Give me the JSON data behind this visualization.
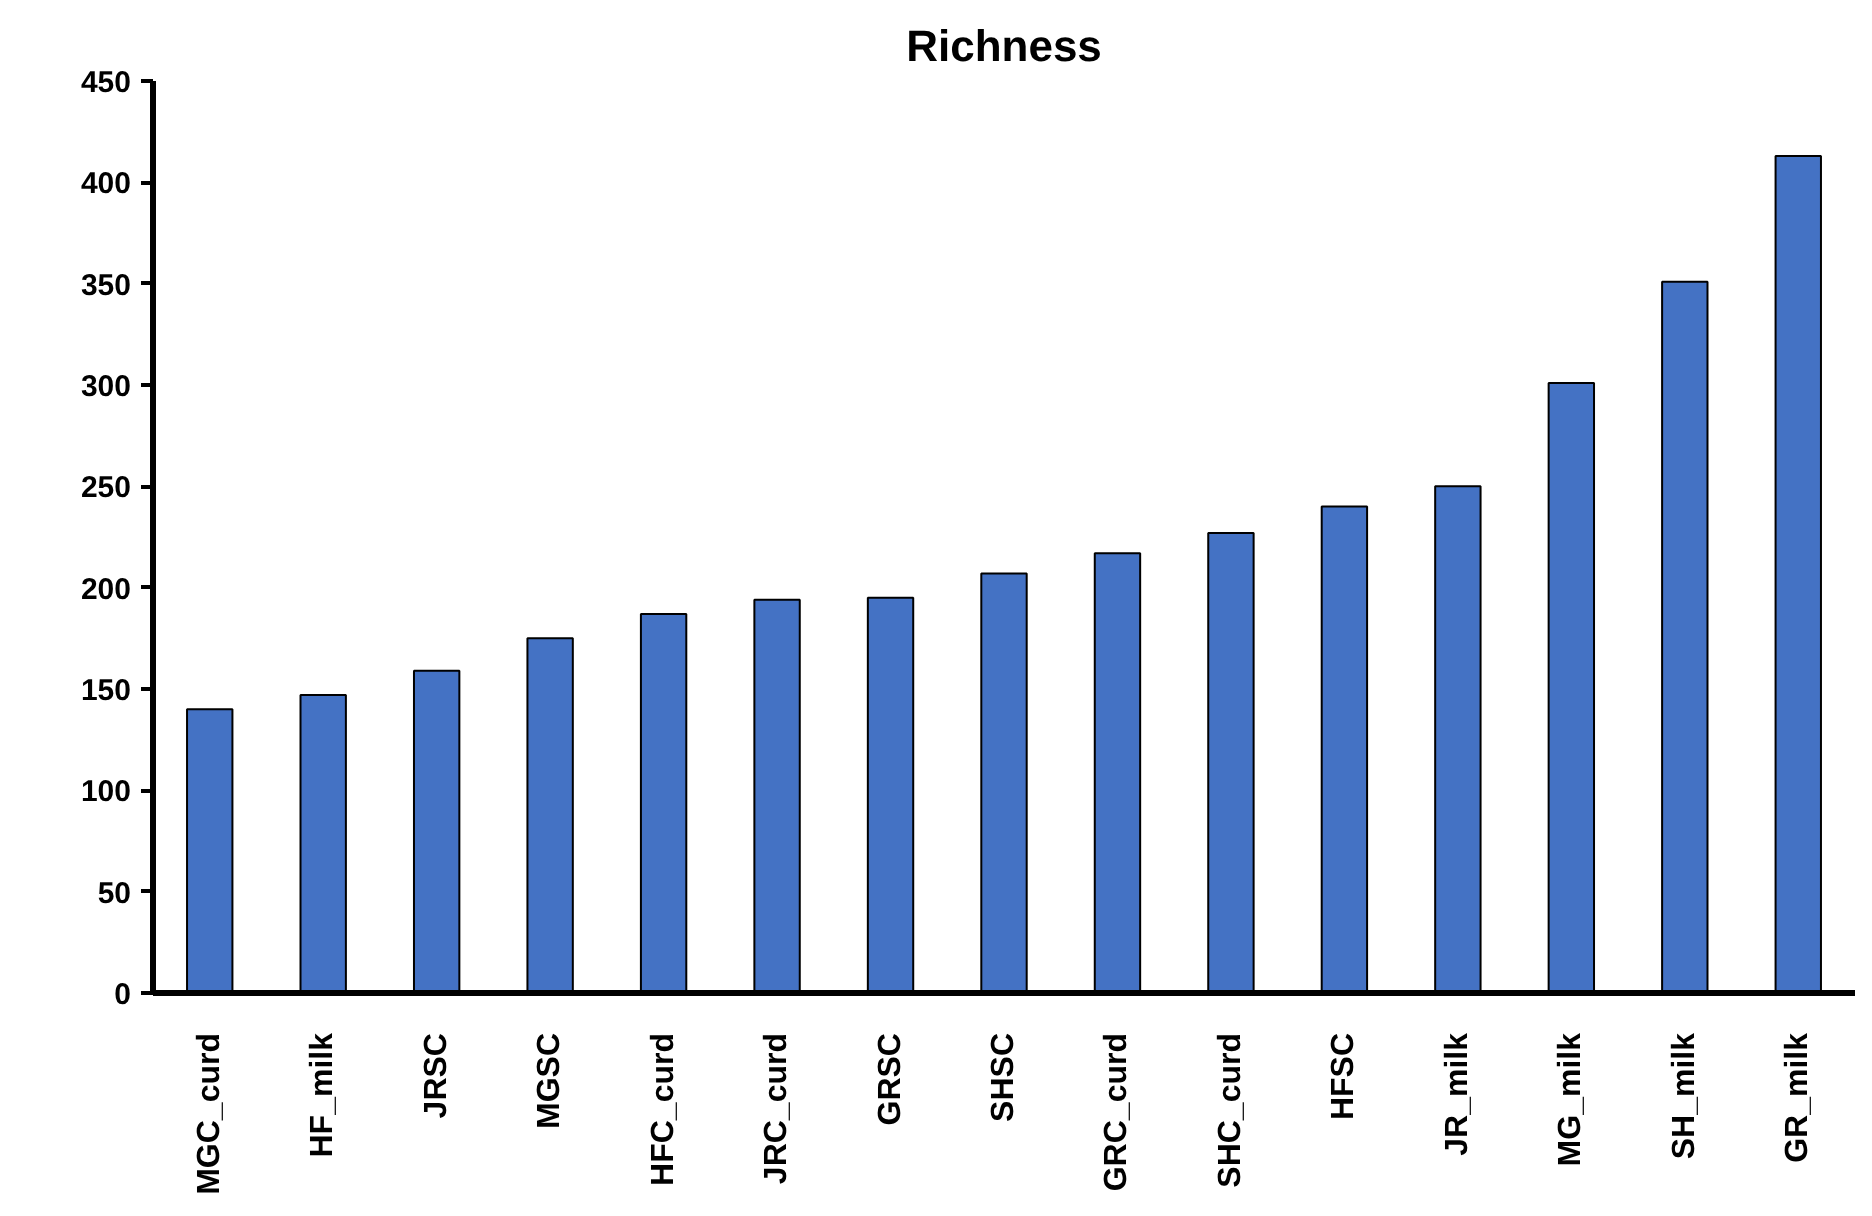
{
  "chart_data": {
    "type": "bar",
    "title": "Richness",
    "categories": [
      "MGC_curd",
      "HF_milk",
      "JRSC",
      "MGSC",
      "HFC_curd",
      "JRC_curd",
      "GRSC",
      "SHSC",
      "GRC_curd",
      "SHC_curd",
      "HFSC",
      "JR_milk",
      "MG_milk",
      "SH_milk",
      "GR_milk"
    ],
    "values": [
      140,
      147,
      159,
      175,
      187,
      194,
      195,
      207,
      217,
      227,
      240,
      250,
      301,
      351,
      413
    ],
    "color": "#4472c4",
    "ylim": [
      0,
      450
    ],
    "yticks": [
      0,
      50,
      100,
      150,
      200,
      250,
      300,
      350,
      400,
      450
    ],
    "grid": false
  }
}
